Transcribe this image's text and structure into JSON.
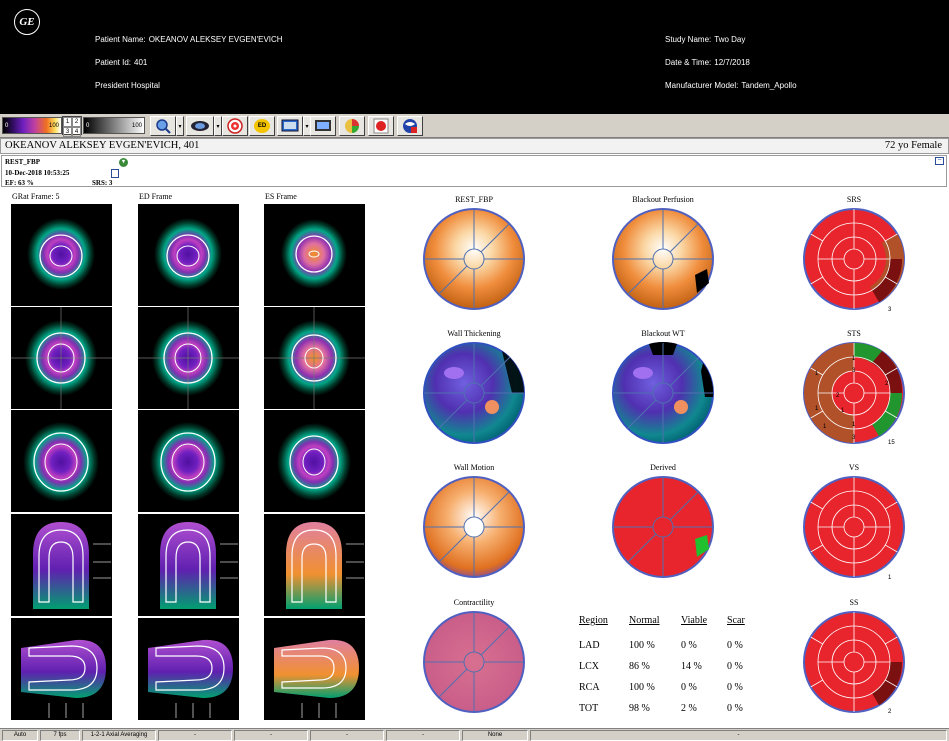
{
  "header": {
    "logo_text": "GE",
    "patient_name_label": "Patient Name:",
    "patient_name": "OKEANOV ALEKSEY EVGEN'EVICH",
    "patient_id_label": "Patient Id:",
    "patient_id": "401",
    "hospital": "President Hospital",
    "study_name_label": "Study Name:",
    "study_name": "Two Day",
    "datetime_label": "Date & Time:",
    "datetime": "12/7/2018",
    "model_label": "Manufacturer Model:",
    "model": "Tandem_Apollo"
  },
  "toolbar": {
    "colorbar1": {
      "min": "0",
      "max": "100"
    },
    "frame_grid": [
      "1",
      "2",
      "3",
      "4"
    ],
    "colorbar2": {
      "min": "0",
      "max": "100"
    },
    "buttons": [
      {
        "icon": "magnifier-icon",
        "label": ""
      },
      {
        "icon": "heart-3d-icon",
        "label": ""
      },
      {
        "icon": "target-icon",
        "label": ""
      },
      {
        "icon": "ed-icon",
        "label": "ED"
      },
      {
        "icon": "monitor-icon",
        "label": ""
      },
      {
        "icon": "screen-icon",
        "label": ""
      },
      {
        "icon": "color-wheel-icon",
        "label": ""
      },
      {
        "icon": "record-icon",
        "label": ""
      },
      {
        "icon": "globe-icon",
        "label": ""
      }
    ]
  },
  "banner": {
    "name": "OKEANOV ALEKSEY EVGEN'EVICH, 401",
    "age_sex": "72 yo  Female"
  },
  "info": {
    "dataset": "REST_FBP",
    "datetime": "10-Dec-2018 10:53:25",
    "ef": "EF: 63 %",
    "srs": "SRS: 3",
    "minimize": "−"
  },
  "frames": {
    "grat": "GRat  Frame: 5",
    "ed": "ED Frame",
    "es": "ES Frame"
  },
  "maps": {
    "rest_fbp": "REST_FBP",
    "blackout_perfusion": "Blackout Perfusion",
    "srs": "SRS",
    "wall_thickening": "Wall Thickening",
    "blackout_wt": "Blackout WT",
    "sts": "STS",
    "wall_motion": "Wall Motion",
    "derived": "Derived",
    "vs": "VS",
    "contractility": "Contractility",
    "ss": "SS"
  },
  "score_labels": {
    "srs": "3",
    "sts": "15",
    "vs": "1",
    "ss": "2"
  },
  "sts_segment_labels": [
    "1",
    "1",
    "2",
    "1",
    "3",
    "1",
    "3",
    "1",
    "2",
    "1"
  ],
  "region_table": {
    "headers": [
      "Region",
      "Normal",
      "Viable",
      "Scar"
    ],
    "rows": [
      [
        "LAD",
        "100 %",
        "0 %",
        "0 %"
      ],
      [
        "LCX",
        "86 %",
        "14 %",
        "0 %"
      ],
      [
        "RCA",
        "100 %",
        "0 %",
        "0 %"
      ],
      [
        "TOT",
        "98 %",
        "2 %",
        "0 %"
      ]
    ]
  },
  "status_bar": [
    "Auto",
    "7 fps",
    "1-2-1 Axial Averaging",
    "-",
    "-",
    "-",
    "-",
    "None",
    "-"
  ],
  "colors": {
    "header_bg": "#000000",
    "toolbar_bg": "#d4d0c8",
    "score_red": "#e8242c",
    "score_brown": "#b1512a",
    "score_green": "#21962e",
    "score_darkred": "#7a1010",
    "perfusion_orange": "#f08e3e"
  }
}
